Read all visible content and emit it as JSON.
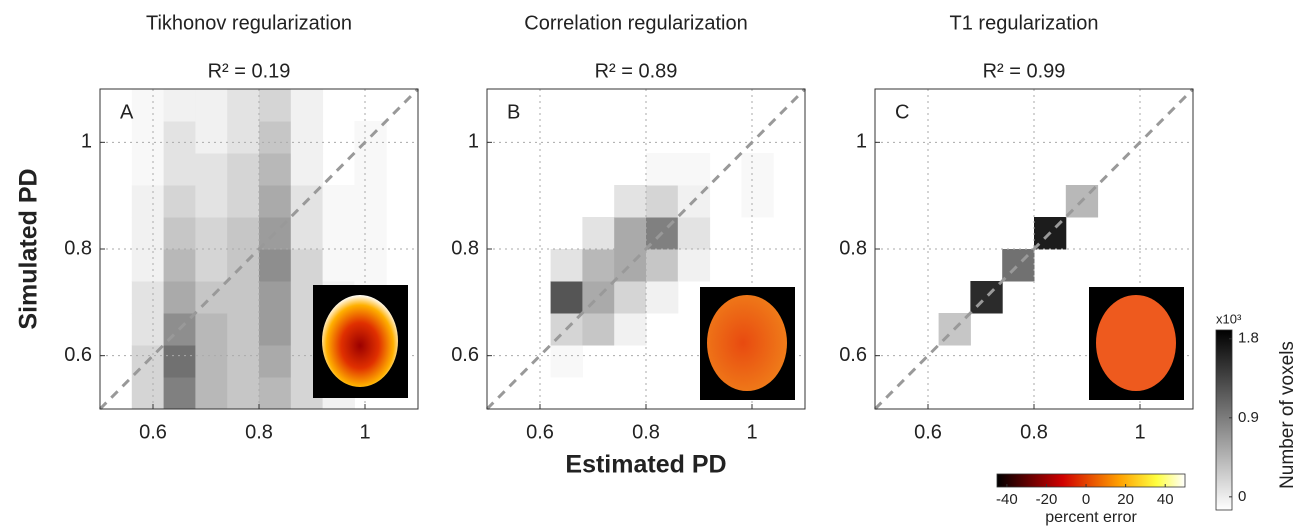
{
  "chart_data": [
    {
      "type": "heatmap",
      "title": "Tikhonov regularization",
      "subtitle": "R² = 0.19",
      "panel": "A",
      "ylabel": "Simulated PD",
      "xlim": [
        0.5,
        1.1
      ],
      "ylim": [
        0.5,
        1.1
      ],
      "xticks": [
        0.6,
        0.8,
        1
      ],
      "yticks": [
        0.6,
        0.8,
        1
      ],
      "grid": true,
      "xbins": [
        0.5,
        0.56,
        0.62,
        0.68,
        0.74,
        0.8,
        0.86,
        0.92,
        0.98,
        1.04,
        1.1
      ],
      "ybins": [
        0.5,
        0.56,
        0.62,
        0.68,
        0.74,
        0.8,
        0.86,
        0.92,
        0.98,
        1.04,
        1.1
      ],
      "counts": [
        [
          0,
          0.3,
          0.9,
          0.5,
          0.4,
          0.5,
          0.3,
          0.1,
          0,
          0
        ],
        [
          0,
          0.3,
          1.0,
          0.5,
          0.4,
          0.6,
          0.3,
          0.1,
          0,
          0
        ],
        [
          0,
          0.2,
          0.8,
          0.5,
          0.4,
          0.7,
          0.3,
          0.1,
          0,
          0
        ],
        [
          0,
          0.2,
          0.6,
          0.4,
          0.4,
          0.7,
          0.3,
          0.1,
          0.05,
          0
        ],
        [
          0,
          0.1,
          0.5,
          0.3,
          0.4,
          0.8,
          0.3,
          0.05,
          0.05,
          0
        ],
        [
          0,
          0.1,
          0.4,
          0.3,
          0.4,
          0.7,
          0.2,
          0.05,
          0.05,
          0
        ],
        [
          0,
          0.1,
          0.3,
          0.2,
          0.3,
          0.6,
          0.2,
          0.05,
          0.05,
          0
        ],
        [
          0,
          0.05,
          0.2,
          0.2,
          0.3,
          0.5,
          0.1,
          0,
          0.05,
          0
        ],
        [
          0,
          0.05,
          0.2,
          0.1,
          0.2,
          0.4,
          0.1,
          0,
          0.05,
          0
        ],
        [
          0,
          0.05,
          0.1,
          0.1,
          0.2,
          0.3,
          0.1,
          0,
          0,
          0
        ]
      ]
    },
    {
      "type": "heatmap",
      "title": "Correlation regularization",
      "subtitle": "R² = 0.89",
      "panel": "B",
      "xlabel": "Estimated PD",
      "xlim": [
        0.5,
        1.1
      ],
      "ylim": [
        0.5,
        1.1
      ],
      "xticks": [
        0.6,
        0.8,
        1
      ],
      "yticks": [
        0.6,
        0.8,
        1
      ],
      "grid": true,
      "xbins": [
        0.5,
        0.56,
        0.62,
        0.68,
        0.74,
        0.8,
        0.86,
        0.92,
        0.98,
        1.04,
        1.1
      ],
      "ybins": [
        0.5,
        0.56,
        0.62,
        0.68,
        0.74,
        0.8,
        0.86,
        0.92,
        0.98,
        1.04,
        1.1
      ],
      "counts": [
        [
          0,
          0,
          0,
          0,
          0,
          0,
          0,
          0,
          0,
          0
        ],
        [
          0,
          0,
          0.05,
          0,
          0,
          0,
          0,
          0,
          0,
          0
        ],
        [
          0,
          0,
          0.3,
          0.4,
          0.1,
          0,
          0,
          0,
          0,
          0
        ],
        [
          0,
          0,
          1.2,
          0.6,
          0.3,
          0.1,
          0,
          0,
          0,
          0
        ],
        [
          0,
          0,
          0.2,
          0.5,
          0.6,
          0.4,
          0.1,
          0,
          0,
          0
        ],
        [
          0,
          0,
          0,
          0.2,
          0.6,
          0.9,
          0.2,
          0,
          0,
          0
        ],
        [
          0,
          0,
          0,
          0,
          0.2,
          0.3,
          0.1,
          0,
          0.05,
          0
        ],
        [
          0,
          0,
          0,
          0,
          0,
          0.05,
          0.05,
          0,
          0.05,
          0
        ],
        [
          0,
          0,
          0,
          0,
          0,
          0,
          0,
          0,
          0,
          0
        ],
        [
          0,
          0,
          0,
          0,
          0,
          0,
          0,
          0,
          0,
          0
        ]
      ]
    },
    {
      "type": "heatmap",
      "title": "T1 regularization",
      "subtitle": "R² = 0.99",
      "panel": "C",
      "xlim": [
        0.5,
        1.1
      ],
      "ylim": [
        0.5,
        1.1
      ],
      "xticks": [
        0.6,
        0.8,
        1
      ],
      "yticks": [
        0.6,
        0.8,
        1
      ],
      "grid": true,
      "xbins": [
        0.5,
        0.56,
        0.62,
        0.68,
        0.74,
        0.8,
        0.86,
        0.92,
        0.98,
        1.04,
        1.1
      ],
      "ybins": [
        0.5,
        0.56,
        0.62,
        0.68,
        0.74,
        0.8,
        0.86,
        0.92,
        0.98,
        1.04,
        1.1
      ],
      "counts": [
        [
          0,
          0,
          0,
          0,
          0,
          0,
          0,
          0,
          0,
          0
        ],
        [
          0,
          0,
          0,
          0,
          0,
          0,
          0,
          0,
          0,
          0
        ],
        [
          0,
          0,
          0.4,
          0,
          0,
          0,
          0,
          0,
          0,
          0
        ],
        [
          0,
          0,
          0,
          1.5,
          0,
          0,
          0,
          0,
          0,
          0
        ],
        [
          0,
          0,
          0,
          0,
          1.0,
          0,
          0,
          0,
          0,
          0
        ],
        [
          0,
          0,
          0,
          0,
          0,
          1.6,
          0,
          0,
          0,
          0
        ],
        [
          0,
          0,
          0,
          0,
          0,
          0,
          0.5,
          0,
          0,
          0
        ],
        [
          0,
          0,
          0,
          0,
          0,
          0,
          0,
          0,
          0,
          0
        ],
        [
          0,
          0,
          0,
          0,
          0,
          0,
          0,
          0,
          0,
          0
        ],
        [
          0,
          0,
          0,
          0,
          0,
          0,
          0,
          0,
          0,
          0
        ]
      ]
    },
    {
      "type": "colorbar",
      "orientation": "horizontal",
      "label": "percent error",
      "lim": [
        -45,
        50
      ],
      "ticks": [
        -40,
        -20,
        0,
        20,
        40
      ]
    },
    {
      "type": "colorbar",
      "orientation": "vertical",
      "label": "Number of voxels",
      "multiplier": "x10³",
      "lim": [
        -0.15,
        1.9
      ],
      "ticks": [
        0,
        0.9,
        1.8
      ]
    }
  ]
}
